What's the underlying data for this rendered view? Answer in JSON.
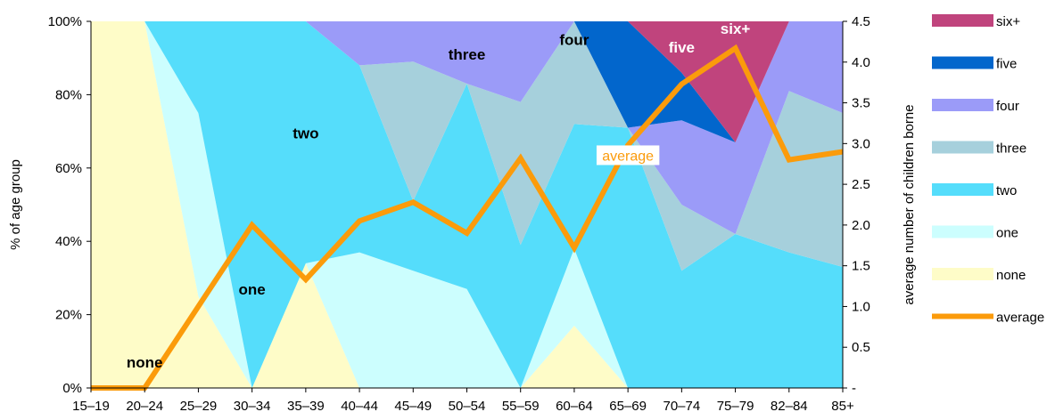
{
  "chart_data": {
    "type": "area",
    "title": "",
    "subtitle": "",
    "categories": [
      "15–19",
      "20–24",
      "25–29",
      "30–34",
      "35–39",
      "40–44",
      "45–49",
      "50–54",
      "55–59",
      "60–64",
      "65–69",
      "70–74",
      "75–79",
      "82–84",
      "85+"
    ],
    "ylabel": "% of age group",
    "y2label": "average number of children borne",
    "ylim": [
      0,
      100
    ],
    "y2lim": [
      0,
      4.5
    ],
    "yticks": [
      "0%",
      "20%",
      "40%",
      "60%",
      "80%",
      "100%"
    ],
    "y2ticks": [
      "-",
      "0.5",
      "1.0",
      "1.5",
      "2.0",
      "2.5",
      "3.0",
      "3.5",
      "4.0",
      "4.5"
    ],
    "grid": false,
    "legend_position": "right",
    "stacked_series": [
      {
        "name": "none",
        "color": "#fefcc8",
        "values": [
          100,
          100,
          25,
          0,
          34,
          0,
          0,
          0,
          0,
          17,
          0,
          0,
          0,
          0,
          0
        ]
      },
      {
        "name": "one",
        "color": "#ccfefe",
        "values": [
          0,
          0,
          50,
          0,
          0,
          37,
          32,
          27,
          0,
          21,
          0,
          0,
          0,
          0,
          0
        ]
      },
      {
        "name": "two",
        "color": "#55ddfb",
        "values": [
          0,
          0,
          25,
          100,
          66,
          51,
          19,
          56,
          39,
          34,
          71,
          32,
          42,
          37,
          33
        ]
      },
      {
        "name": "three",
        "color": "#a6d0dc",
        "values": [
          0,
          0,
          0,
          0,
          0,
          0,
          38,
          0,
          39,
          28,
          0,
          18,
          0,
          44,
          42
        ]
      },
      {
        "name": "four",
        "color": "#9b9bf8",
        "values": [
          0,
          0,
          0,
          0,
          0,
          12,
          11,
          17,
          22,
          0,
          0,
          23,
          25,
          19,
          25
        ]
      },
      {
        "name": "five",
        "color": "#0266cc",
        "values": [
          0,
          0,
          0,
          0,
          0,
          0,
          0,
          0,
          0,
          0,
          29,
          13,
          0,
          0,
          0
        ]
      },
      {
        "name": "six+",
        "color": "#c0447d",
        "values": [
          0,
          0,
          0,
          0,
          0,
          0,
          0,
          0,
          0,
          0,
          0,
          14,
          33,
          0,
          0
        ]
      }
    ],
    "line_series": {
      "name": "average",
      "color": "#fb9b0b",
      "axis": "right",
      "values": [
        0,
        0,
        1.0,
        2.0,
        1.33,
        2.05,
        2.28,
        1.9,
        2.82,
        1.72,
        2.98,
        3.73,
        4.17,
        2.8,
        2.9
      ]
    },
    "area_labels": [
      {
        "text": "none",
        "x": "20–24",
        "y": 7,
        "color": "#000000"
      },
      {
        "text": "one",
        "x": "30–34",
        "y": 27,
        "color": "#000000"
      },
      {
        "text": "two",
        "x": "35–39",
        "y": 69.5,
        "color": "#000000"
      },
      {
        "text": "three",
        "x": "50–54",
        "y": 91,
        "color": "#000000"
      },
      {
        "text": "four",
        "x": "60–64",
        "y": 95,
        "color": "#000000"
      },
      {
        "text": "five",
        "x": "70–74",
        "y": 93,
        "color": "#ffffff"
      },
      {
        "text": "six+",
        "x": "75–79",
        "y": 98,
        "color": "#ffffff"
      },
      {
        "text": "average",
        "x": "65–69",
        "y": 63,
        "color": "#fb9b0b",
        "boxed": true
      }
    ],
    "legend": [
      "six+",
      "five",
      "four",
      "three",
      "two",
      "one",
      "none",
      "average"
    ]
  }
}
